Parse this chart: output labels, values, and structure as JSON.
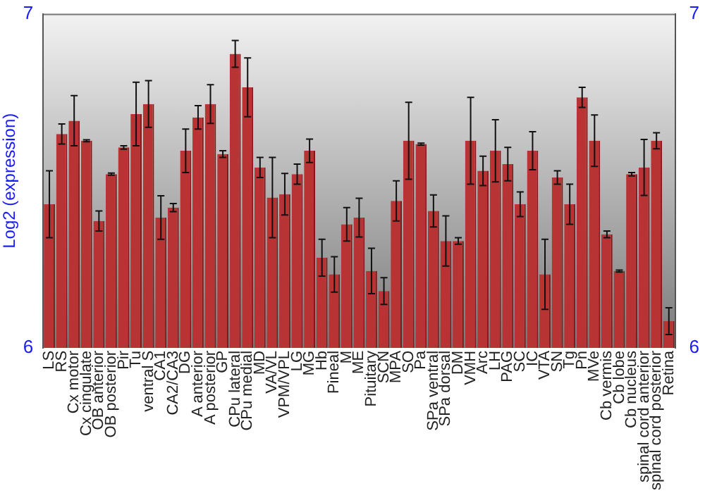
{
  "chart_data": {
    "type": "bar",
    "ylabel": "Log2 (expression)",
    "categories": [
      "LS",
      "RS",
      "Cx motor",
      "Cx cingulate",
      "OB anterior",
      "OB posterior",
      "Pir",
      "Tu",
      "ventral S",
      "CA1",
      "CA2/CA3",
      "DG",
      "A anterior",
      "A posterior",
      "GP",
      "CPu lateral",
      "CPu medial",
      "MD",
      "VA/VL",
      "VPM/VPL",
      "LG",
      "MG",
      "Hb",
      "Pineal",
      "M",
      "ME",
      "Pituitary",
      "SCN",
      "MPA",
      "SO",
      "Pa",
      "SPa ventral",
      "SPa dorsal",
      "DM",
      "VMH",
      "Arc",
      "LH",
      "PAG",
      "SC",
      "IC",
      "VTA",
      "SN",
      "Tg",
      "Pn",
      "MVe",
      "Cb vermis",
      "Cb lobe",
      "Cb nucleus",
      "spinal cord anterior",
      "spinal cord posterior",
      "Retina"
    ],
    "values": [
      6.43,
      6.64,
      6.68,
      6.62,
      6.38,
      6.52,
      6.6,
      6.7,
      6.73,
      6.39,
      6.42,
      6.59,
      6.69,
      6.73,
      6.58,
      6.88,
      6.78,
      6.54,
      6.45,
      6.46,
      6.52,
      6.59,
      6.27,
      6.22,
      6.37,
      6.39,
      6.23,
      6.17,
      6.44,
      6.62,
      6.61,
      6.41,
      6.32,
      6.32,
      6.62,
      6.53,
      6.59,
      6.55,
      6.43,
      6.59,
      6.22,
      6.51,
      6.43,
      6.75,
      6.62,
      6.34,
      6.23,
      6.52,
      6.54,
      6.62,
      6.08
    ],
    "errors": [
      0.1,
      0.03,
      0.075,
      0.003,
      0.03,
      0.003,
      0.005,
      0.095,
      0.07,
      0.065,
      0.012,
      0.065,
      0.035,
      0.058,
      0.01,
      0.04,
      0.088,
      0.03,
      0.12,
      0.062,
      0.03,
      0.035,
      0.055,
      0.053,
      0.05,
      0.058,
      0.068,
      0.04,
      0.06,
      0.115,
      0.003,
      0.048,
      0.075,
      0.01,
      0.13,
      0.044,
      0.093,
      0.05,
      0.037,
      0.057,
      0.105,
      0.02,
      0.06,
      0.03,
      0.077,
      0.01,
      0.003,
      0.005,
      0.084,
      0.024,
      0.04
    ],
    "color": "#b83434",
    "ylim": [
      6,
      7
    ],
    "yticks": [
      6,
      7
    ],
    "y2lim": [
      6,
      7
    ],
    "y2ticks": [
      6,
      7
    ],
    "grid": false,
    "legend": false
  }
}
